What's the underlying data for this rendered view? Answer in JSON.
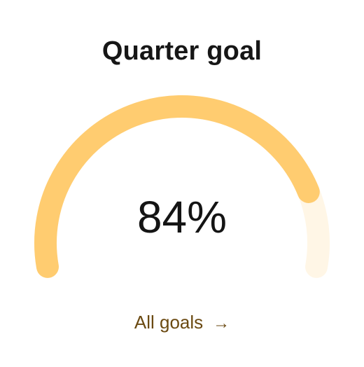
{
  "card": {
    "title": "Quarter goal",
    "value_label": "84%",
    "progress": 0.84,
    "link_label": "All goals",
    "link_arrow": "→"
  },
  "colors": {
    "gauge_fill": "#FFCC70",
    "gauge_track": "#FFF6E6",
    "link": "#6B4A12"
  }
}
